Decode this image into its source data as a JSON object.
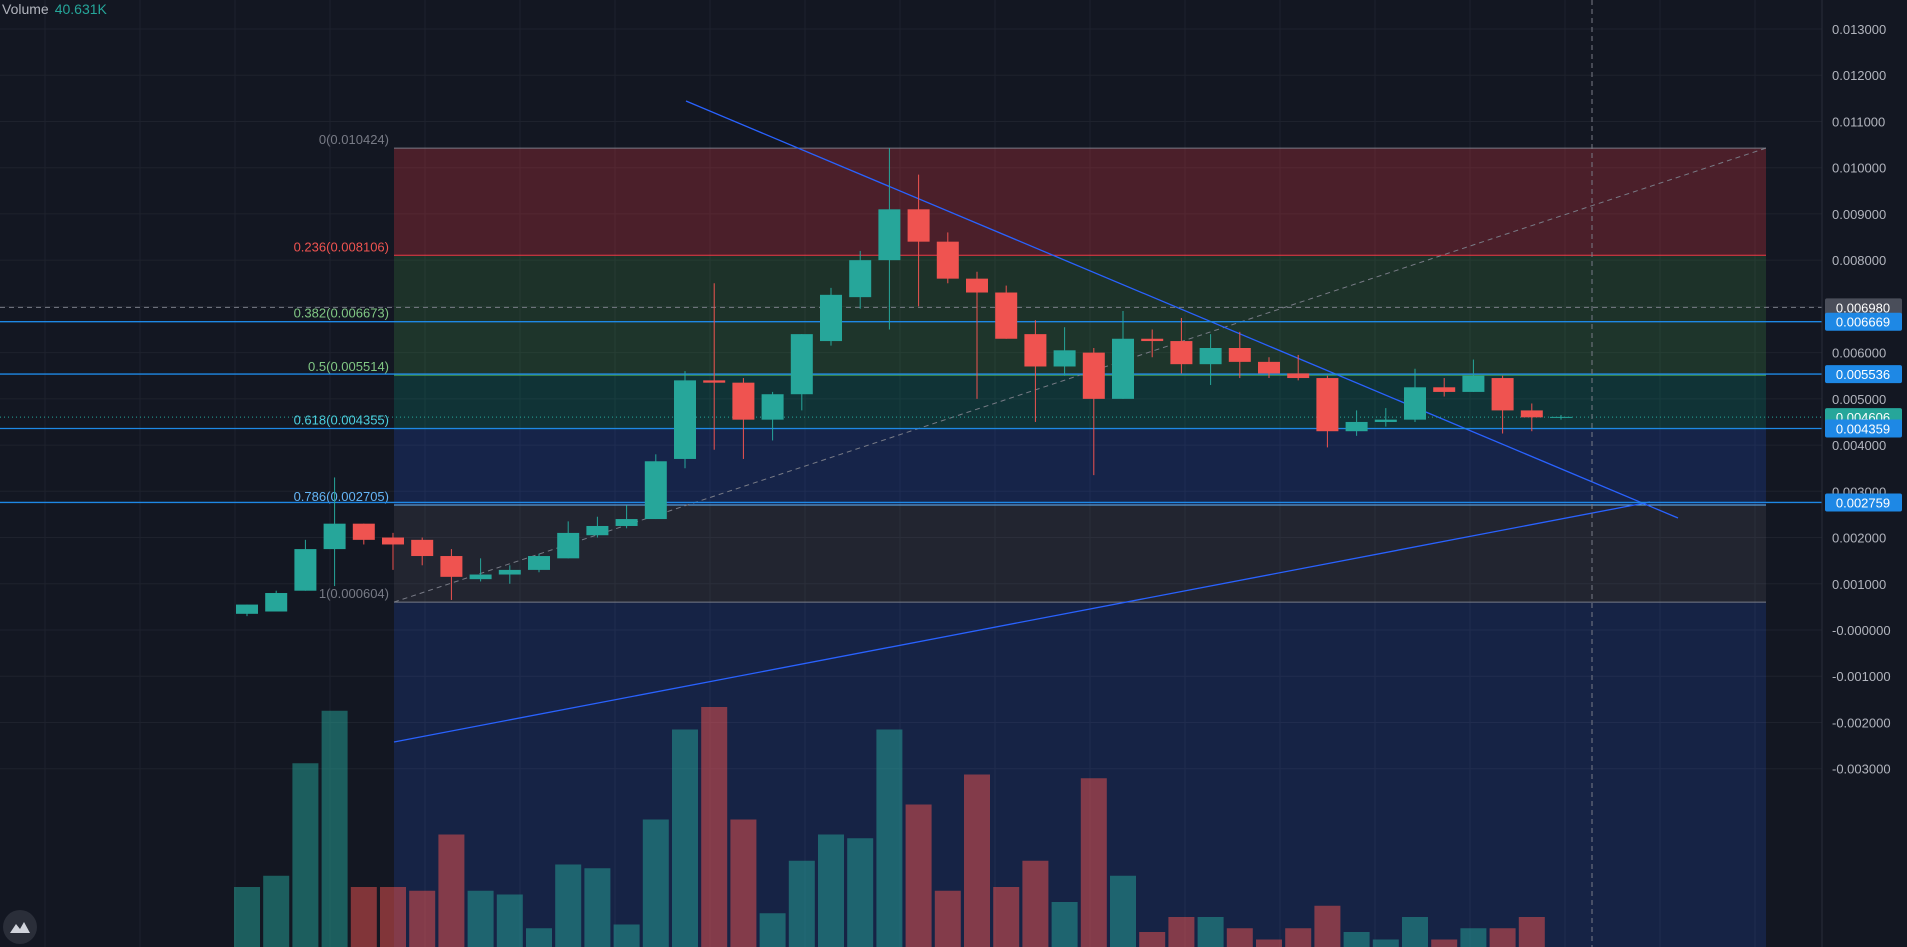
{
  "volume_legend": {
    "label": "Volume",
    "value": "40.631K"
  },
  "colors": {
    "background": "#131722",
    "grid": "#1e222d",
    "up": "#26a69a",
    "down": "#ef5350",
    "line": "#2962ff",
    "hline": "#1e88e5",
    "fib_text_red": "#ef5350",
    "fib_text_green": "#81c784",
    "fib_text_teal": "#4dd0e1",
    "fib_text_blue": "#64b5f6",
    "axis_text": "#b2b5be"
  },
  "chart_data": {
    "type": "candlestick",
    "price_axis": {
      "range": [
        -0.003,
        0.0135
      ],
      "ticks": [
        "0.013000",
        "0.012000",
        "0.011000",
        "0.010000",
        "0.009000",
        "0.008000",
        "0.007000",
        "0.006000",
        "0.005000",
        "0.004000",
        "0.003000",
        "0.002000",
        "0.001000",
        "-0.000000",
        "-0.001000",
        "-0.002000",
        "-0.003000"
      ]
    },
    "price_labels": [
      {
        "text": "0.006980",
        "price": 0.00698,
        "style": "gray"
      },
      {
        "text": "0.006669",
        "price": 0.006669,
        "style": "blue"
      },
      {
        "text": "0.005536",
        "price": 0.005536,
        "style": "blue"
      },
      {
        "text": "0.004606",
        "price": 0.004606,
        "style": "green"
      },
      {
        "text": "0.004359",
        "price": 0.004359,
        "style": "blue"
      },
      {
        "text": "0.002759",
        "price": 0.002759,
        "style": "blue"
      }
    ],
    "fibonacci": {
      "levels": [
        {
          "label": "0(0.010424)",
          "price": 0.010424
        },
        {
          "label": "0.236(0.008106)",
          "price": 0.008106
        },
        {
          "label": "0.382(0.006673)",
          "price": 0.006673
        },
        {
          "label": "0.5(0.005514)",
          "price": 0.005514
        },
        {
          "label": "0.618(0.004355)",
          "price": 0.004355
        },
        {
          "label": "0.786(0.002705)",
          "price": 0.002705
        },
        {
          "label": "1(0.000604)",
          "price": 0.000604
        }
      ]
    },
    "candles": [
      {
        "o": 0.00035,
        "h": 0.00055,
        "l": 0.0003,
        "c": 0.00055
      },
      {
        "o": 0.0004,
        "h": 0.00085,
        "l": 0.0004,
        "c": 0.0008
      },
      {
        "o": 0.00085,
        "h": 0.00195,
        "l": 0.00085,
        "c": 0.00175
      },
      {
        "o": 0.00175,
        "h": 0.0033,
        "l": 0.00095,
        "c": 0.0023
      },
      {
        "o": 0.0023,
        "h": 0.0023,
        "l": 0.00185,
        "c": 0.00195
      },
      {
        "o": 0.002,
        "h": 0.0021,
        "l": 0.0013,
        "c": 0.00185
      },
      {
        "o": 0.00195,
        "h": 0.002,
        "l": 0.0014,
        "c": 0.0016
      },
      {
        "o": 0.0016,
        "h": 0.00175,
        "l": 0.00065,
        "c": 0.00115
      },
      {
        "o": 0.0011,
        "h": 0.00155,
        "l": 0.00105,
        "c": 0.0012
      },
      {
        "o": 0.0012,
        "h": 0.0014,
        "l": 0.001,
        "c": 0.0013
      },
      {
        "o": 0.0013,
        "h": 0.00165,
        "l": 0.00125,
        "c": 0.0016
      },
      {
        "o": 0.00155,
        "h": 0.00235,
        "l": 0.00155,
        "c": 0.0021
      },
      {
        "o": 0.00205,
        "h": 0.00245,
        "l": 0.002,
        "c": 0.00225
      },
      {
        "o": 0.00225,
        "h": 0.0027,
        "l": 0.0022,
        "c": 0.0024
      },
      {
        "o": 0.0024,
        "h": 0.0038,
        "l": 0.0024,
        "c": 0.00365
      },
      {
        "o": 0.0037,
        "h": 0.0056,
        "l": 0.0035,
        "c": 0.0054
      },
      {
        "o": 0.0054,
        "h": 0.0075,
        "l": 0.0039,
        "c": 0.00535
      },
      {
        "o": 0.00535,
        "h": 0.00545,
        "l": 0.0037,
        "c": 0.00455
      },
      {
        "o": 0.00455,
        "h": 0.00515,
        "l": 0.0041,
        "c": 0.0051
      },
      {
        "o": 0.0051,
        "h": 0.0064,
        "l": 0.00475,
        "c": 0.0064
      },
      {
        "o": 0.00625,
        "h": 0.0074,
        "l": 0.00615,
        "c": 0.00725
      },
      {
        "o": 0.0072,
        "h": 0.0082,
        "l": 0.00695,
        "c": 0.008
      },
      {
        "o": 0.008,
        "h": 0.01042,
        "l": 0.0065,
        "c": 0.0091
      },
      {
        "o": 0.0091,
        "h": 0.00985,
        "l": 0.007,
        "c": 0.0084
      },
      {
        "o": 0.0084,
        "h": 0.0086,
        "l": 0.0075,
        "c": 0.0076
      },
      {
        "o": 0.0076,
        "h": 0.00775,
        "l": 0.005,
        "c": 0.0073
      },
      {
        "o": 0.0073,
        "h": 0.00745,
        "l": 0.0063,
        "c": 0.0063
      },
      {
        "o": 0.0064,
        "h": 0.0067,
        "l": 0.0045,
        "c": 0.0057
      },
      {
        "o": 0.0057,
        "h": 0.00655,
        "l": 0.0055,
        "c": 0.00605
      },
      {
        "o": 0.006,
        "h": 0.0061,
        "l": 0.00335,
        "c": 0.005
      },
      {
        "o": 0.005,
        "h": 0.0069,
        "l": 0.005,
        "c": 0.0063
      },
      {
        "o": 0.0063,
        "h": 0.0065,
        "l": 0.0059,
        "c": 0.00625
      },
      {
        "o": 0.00625,
        "h": 0.00675,
        "l": 0.00555,
        "c": 0.00575
      },
      {
        "o": 0.00575,
        "h": 0.0064,
        "l": 0.0053,
        "c": 0.0061
      },
      {
        "o": 0.0061,
        "h": 0.00645,
        "l": 0.00545,
        "c": 0.0058
      },
      {
        "o": 0.0058,
        "h": 0.0059,
        "l": 0.00545,
        "c": 0.00555
      },
      {
        "o": 0.00555,
        "h": 0.00595,
        "l": 0.0054,
        "c": 0.00545
      },
      {
        "o": 0.00545,
        "h": 0.0055,
        "l": 0.00395,
        "c": 0.0043
      },
      {
        "o": 0.0043,
        "h": 0.00475,
        "l": 0.0042,
        "c": 0.0045
      },
      {
        "o": 0.0045,
        "h": 0.0048,
        "l": 0.0044,
        "c": 0.00455
      },
      {
        "o": 0.00455,
        "h": 0.00565,
        "l": 0.0045,
        "c": 0.00525
      },
      {
        "o": 0.00525,
        "h": 0.00545,
        "l": 0.00505,
        "c": 0.00515
      },
      {
        "o": 0.00515,
        "h": 0.00585,
        "l": 0.00515,
        "c": 0.0055
      },
      {
        "o": 0.00545,
        "h": 0.0055,
        "l": 0.00425,
        "c": 0.00475
      },
      {
        "o": 0.00475,
        "h": 0.0049,
        "l": 0.0043,
        "c": 0.0046
      },
      {
        "o": 0.0046,
        "h": 0.00465,
        "l": 0.00455,
        "c": 0.00461
      }
    ],
    "volume": [
      {
        "v": 16,
        "up": true
      },
      {
        "v": 19,
        "up": true
      },
      {
        "v": 49,
        "up": true
      },
      {
        "v": 63,
        "up": true
      },
      {
        "v": 16,
        "up": false
      },
      {
        "v": 16,
        "up": false
      },
      {
        "v": 15,
        "up": false
      },
      {
        "v": 30,
        "up": false
      },
      {
        "v": 15,
        "up": true
      },
      {
        "v": 14,
        "up": true
      },
      {
        "v": 5,
        "up": true
      },
      {
        "v": 22,
        "up": true
      },
      {
        "v": 21,
        "up": true
      },
      {
        "v": 6,
        "up": true
      },
      {
        "v": 34,
        "up": true
      },
      {
        "v": 58,
        "up": true
      },
      {
        "v": 64,
        "up": false
      },
      {
        "v": 34,
        "up": false
      },
      {
        "v": 9,
        "up": true
      },
      {
        "v": 23,
        "up": true
      },
      {
        "v": 30,
        "up": true
      },
      {
        "v": 29,
        "up": true
      },
      {
        "v": 58,
        "up": true
      },
      {
        "v": 38,
        "up": false
      },
      {
        "v": 15,
        "up": false
      },
      {
        "v": 46,
        "up": false
      },
      {
        "v": 16,
        "up": false
      },
      {
        "v": 23,
        "up": false
      },
      {
        "v": 12,
        "up": true
      },
      {
        "v": 45,
        "up": false
      },
      {
        "v": 19,
        "up": true
      },
      {
        "v": 4,
        "up": false
      },
      {
        "v": 8,
        "up": false
      },
      {
        "v": 8,
        "up": true
      },
      {
        "v": 5,
        "up": false
      },
      {
        "v": 2,
        "up": false
      },
      {
        "v": 5,
        "up": false
      },
      {
        "v": 11,
        "up": false
      },
      {
        "v": 4,
        "up": true
      },
      {
        "v": 2,
        "up": true
      },
      {
        "v": 8,
        "up": true
      },
      {
        "v": 2,
        "up": false
      },
      {
        "v": 5,
        "up": true
      },
      {
        "v": 5,
        "up": false
      },
      {
        "v": 8,
        "up": false
      },
      {
        "v": 0,
        "up": true
      }
    ]
  }
}
